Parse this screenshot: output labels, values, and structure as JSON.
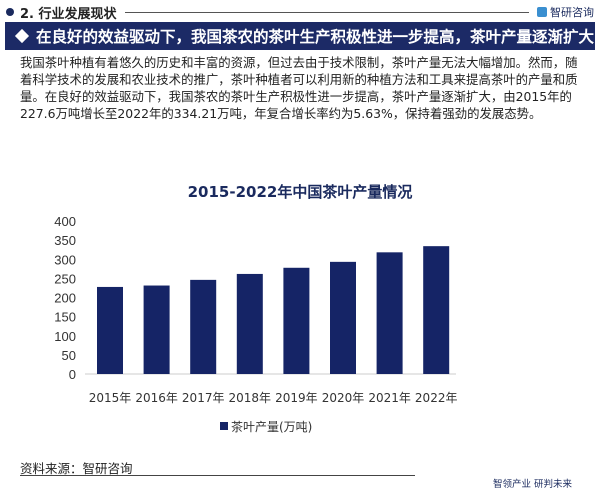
{
  "header": {
    "section": "2. 行业发展现状",
    "brand": "智研咨询"
  },
  "banner": {
    "title": "在良好的效益驱动下，我国茶农的茶叶生产积极性进一步提高，茶叶产量逐渐扩大"
  },
  "paragraph": "我国茶叶种植有着悠久的历史和丰富的资源，但过去由于技术限制，茶叶产量无法大幅增加。然而，随着科学技术的发展和农业技术的推广，茶叶种植者可以利用新的种植方法和工具来提高茶叶的产量和质量。在良好的效益驱动下，我国茶农的茶叶生产积极性进一步提高，茶叶产量逐渐扩大，由2015年的227.6万吨增长至2022年的334.21万吨，年复合增长率约为5.63%，保持着强劲的发展态势。",
  "chart_data": {
    "type": "bar",
    "title": "2015-2022年中国茶叶产量情况",
    "categories": [
      "2015年",
      "2016年",
      "2017年",
      "2018年",
      "2019年",
      "2020年",
      "2021年",
      "2022年"
    ],
    "series": [
      {
        "name": "茶叶产量(万吨)",
        "values": [
          227.6,
          231.3,
          246.1,
          261.6,
          277.7,
          293.2,
          318.1,
          334.21
        ]
      }
    ],
    "ylim": [
      0,
      400
    ],
    "yticks": [
      0,
      50,
      100,
      150,
      200,
      250,
      300,
      350,
      400
    ],
    "grid": false,
    "legend": "bottom",
    "color": "#152466"
  },
  "footer": {
    "source": "资料来源：智研咨询",
    "slogan": "智领产业 研判未来"
  }
}
